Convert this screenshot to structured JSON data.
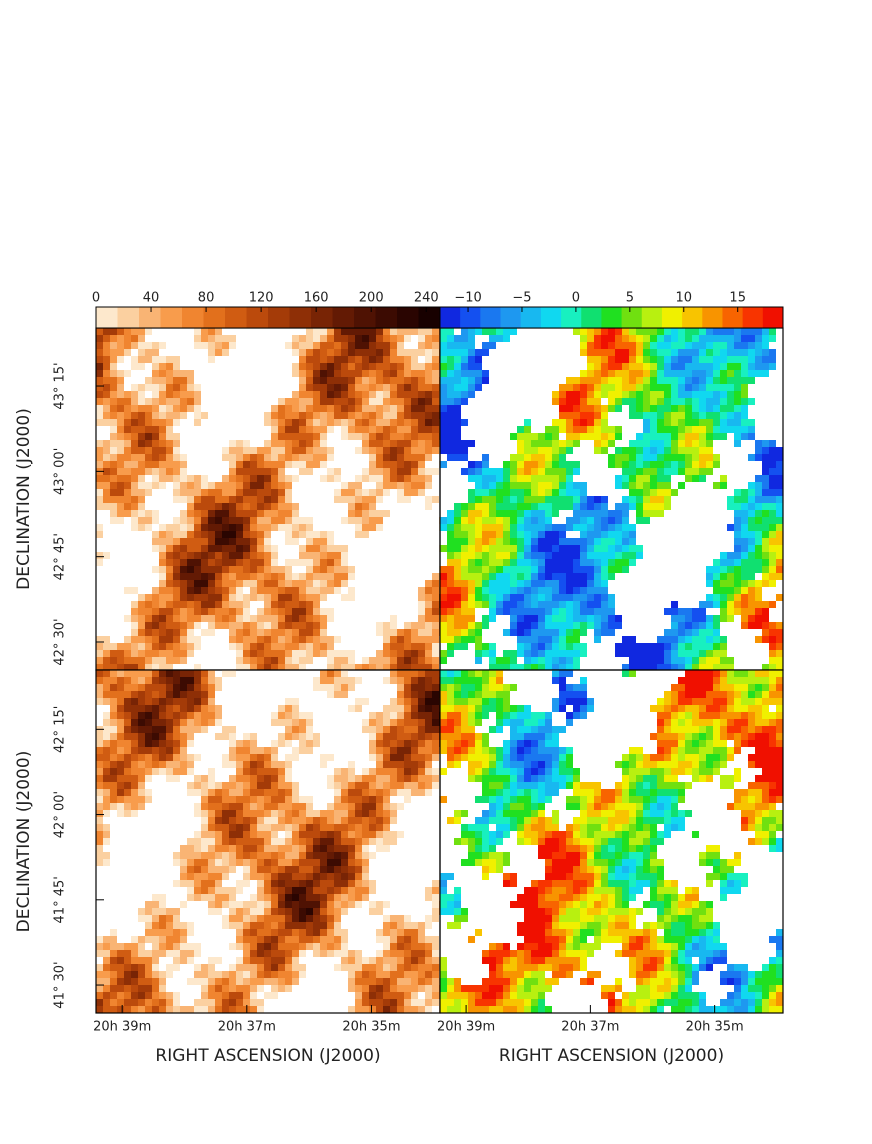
{
  "figure": {
    "columns": [
      {
        "colorbar": {
          "type": "colorbar",
          "lim": [
            0,
            250
          ],
          "ticks": [
            0,
            40,
            80,
            120,
            160,
            200,
            240
          ],
          "colors": [
            "#fde8cc",
            "#fbd0a0",
            "#f9b474",
            "#f89c4c",
            "#f08530",
            "#e2701c",
            "#d05c12",
            "#bb4a0c",
            "#a43b08",
            "#8e2f06",
            "#782405",
            "#631a04",
            "#4f1203",
            "#3c0b02",
            "#2a0501",
            "#180100"
          ]
        },
        "xlabel": "RIGHT ASCENSION (J2000)",
        "xlim": [
          39.42,
          33.9
        ],
        "xticks": [
          {
            "value": 39,
            "label": "20h 39m"
          },
          {
            "value": 37,
            "label": "20h 37m"
          },
          {
            "value": 35,
            "label": "20h 35m"
          }
        ]
      },
      {
        "colorbar": {
          "type": "colorbar",
          "lim": [
            -12.6,
            19.2
          ],
          "ticks": [
            {
              "value": -10,
              "label": "−10"
            },
            {
              "value": -5,
              "label": "−5"
            },
            0,
            5,
            10,
            15
          ],
          "colors": [
            "#1028e0",
            "#1450f0",
            "#1a78f0",
            "#1e98f0",
            "#18b8f0",
            "#10d8f0",
            "#18f0c0",
            "#10e070",
            "#20e020",
            "#70e010",
            "#b8f010",
            "#f0f000",
            "#f8c400",
            "#f89400",
            "#f86400",
            "#f83400",
            "#f01000"
          ]
        },
        "xlabel": "RIGHT ASCENSION (J2000)",
        "xlim": [
          39.42,
          33.9
        ],
        "xticks": [
          {
            "value": 39,
            "label": "20h 39m"
          },
          {
            "value": 37,
            "label": "20h 37m"
          },
          {
            "value": 35,
            "label": "20h 35m"
          }
        ]
      }
    ],
    "rows": [
      {
        "ylabel": "DECLINATION (J2000)",
        "ylim": [
          42.418,
          43.42
        ],
        "yticks": [
          {
            "value": 43.25,
            "label": "43° 15'"
          },
          {
            "value": 43,
            "label": "43° 00'"
          },
          {
            "value": 42.75,
            "label": "42° 45'"
          },
          {
            "value": 42.5,
            "label": "42° 30'"
          }
        ]
      },
      {
        "ylabel": "DECLINATION (J2000)",
        "ylim": [
          41.418,
          42.424
        ],
        "yticks": [
          {
            "value": 42.25,
            "label": "42° 15'"
          },
          {
            "value": 42,
            "label": "42° 00'"
          },
          {
            "value": 41.75,
            "label": "41° 45'"
          },
          {
            "value": 41.5,
            "label": "41° 30'"
          }
        ]
      }
    ]
  }
}
